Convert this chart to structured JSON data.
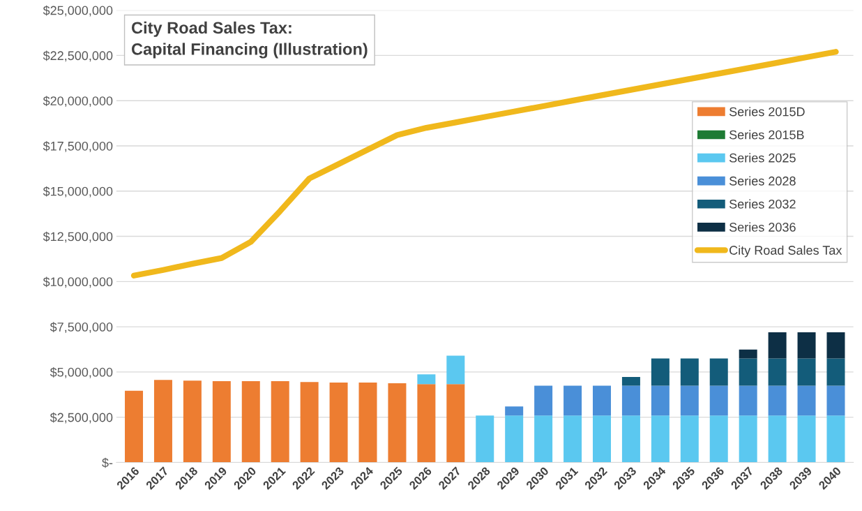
{
  "chart_data": {
    "type": "bar",
    "stacked": true,
    "title": "City Road Sales Tax:\nCapital Financing (Illustration)",
    "categories": [
      "2016",
      "2017",
      "2018",
      "2019",
      "2020",
      "2021",
      "2022",
      "2023",
      "2024",
      "2025",
      "2026",
      "2027",
      "2028",
      "2029",
      "2030",
      "2031",
      "2032",
      "2033",
      "2034",
      "2035",
      "2036",
      "2037",
      "2038",
      "2039",
      "2040"
    ],
    "series": [
      {
        "name": "Series 2015D",
        "color": "#ed7d31",
        "values": [
          3960000,
          4560000,
          4520000,
          4490000,
          4490000,
          4490000,
          4450000,
          4420000,
          4420000,
          4380000,
          4330000,
          4330000,
          null,
          null,
          null,
          null,
          null,
          null,
          null,
          null,
          null,
          null,
          null,
          null,
          null
        ]
      },
      {
        "name": "Series 2015B",
        "color": "#1e7b34",
        "values": [
          0,
          0,
          0,
          0,
          0,
          0,
          0,
          0,
          0,
          0,
          0,
          0,
          0,
          0,
          0,
          0,
          0,
          0,
          0,
          0,
          0,
          0,
          0,
          0,
          0
        ]
      },
      {
        "name": "Series 2025",
        "color": "#5bc8f0",
        "values": [
          null,
          null,
          null,
          null,
          null,
          null,
          null,
          null,
          null,
          null,
          540000,
          1570000,
          2590000,
          2590000,
          2590000,
          2590000,
          2590000,
          2590000,
          2590000,
          2590000,
          2590000,
          2590000,
          2590000,
          2590000,
          2590000
        ]
      },
      {
        "name": "Series 2028",
        "color": "#4a8fd8",
        "values": [
          null,
          null,
          null,
          null,
          null,
          null,
          null,
          null,
          null,
          null,
          null,
          null,
          null,
          510000,
          1650000,
          1650000,
          1650000,
          1650000,
          1650000,
          1650000,
          1650000,
          1650000,
          1650000,
          1650000,
          1650000
        ]
      },
      {
        "name": "Series 2032",
        "color": "#135c7a",
        "values": [
          null,
          null,
          null,
          null,
          null,
          null,
          null,
          null,
          null,
          null,
          null,
          null,
          null,
          null,
          null,
          null,
          null,
          490000,
          1510000,
          1510000,
          1510000,
          1510000,
          1510000,
          1510000,
          1510000
        ]
      },
      {
        "name": "Series 2036",
        "color": "#0d2f45",
        "values": [
          null,
          null,
          null,
          null,
          null,
          null,
          null,
          null,
          null,
          null,
          null,
          null,
          null,
          null,
          null,
          null,
          null,
          null,
          null,
          null,
          null,
          490000,
          1450000,
          1450000,
          1450000
        ]
      },
      {
        "name": "City Road Sales Tax",
        "type": "line",
        "color": "#f0b81c",
        "values": [
          10330000,
          10640000,
          10980000,
          11300000,
          12200000,
          13900000,
          15700000,
          16500000,
          17300000,
          18100000,
          18500000,
          18800000,
          19100000,
          19400000,
          19700000,
          20000000,
          20300000,
          20600000,
          20900000,
          21200000,
          21500000,
          21800000,
          22100000,
          22400000,
          22700000
        ]
      }
    ],
    "ylim": [
      0,
      25000000
    ],
    "yticks": [
      {
        "value": 0,
        "label": "$-"
      },
      {
        "value": 2500000,
        "label": "$2,500,000"
      },
      {
        "value": 5000000,
        "label": "$5,000,000"
      },
      {
        "value": 7500000,
        "label": "$7,500,000"
      },
      {
        "value": 10000000,
        "label": "$10,000,000"
      },
      {
        "value": 12500000,
        "label": "$12,500,000"
      },
      {
        "value": 15000000,
        "label": "$15,000,000"
      },
      {
        "value": 17500000,
        "label": "$17,500,000"
      },
      {
        "value": 20000000,
        "label": "$20,000,000"
      },
      {
        "value": 22500000,
        "label": "$22,500,000"
      },
      {
        "value": 25000000,
        "label": "$25,000,000"
      }
    ],
    "grid": "y",
    "legend": "right"
  }
}
